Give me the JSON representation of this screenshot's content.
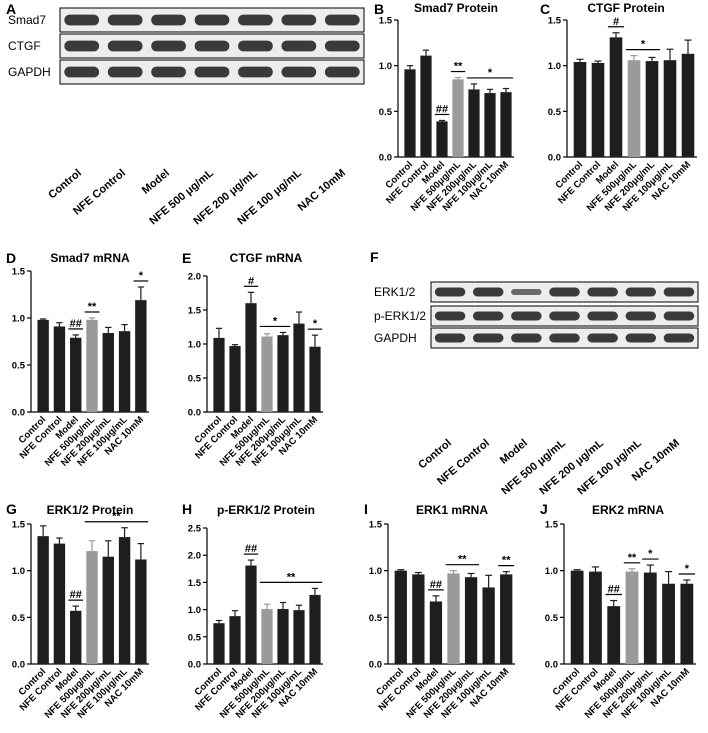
{
  "colors": {
    "dark": "#1e1e1e",
    "gray": "#9a9a9a",
    "axis": "#000000"
  },
  "blots": [
    {
      "label": "A",
      "rows": [
        "Smad7",
        "CTGF",
        "GAPDH"
      ],
      "lanes": [
        "Control",
        "NFE Control",
        "Model",
        "NFE 500 μg/mL",
        "NFE 200 μg/mL",
        "NFE 100 μg/mL",
        "NAC 10mM"
      ]
    },
    {
      "label": "F",
      "rows": [
        "ERK1/2",
        "p-ERK1/2",
        "GAPDH"
      ],
      "lanes": [
        "Control",
        "NFE Control",
        "Model",
        "NFE 500 μg/mL",
        "NFE 200 μg/mL",
        "NFE 100 μg/mL",
        "NAC 10mM"
      ]
    }
  ],
  "chart_data": [
    {
      "label": "B",
      "type": "bar",
      "title": "Smad7 Protein",
      "categories": [
        "Control",
        "NFE Control",
        "Model",
        "NFE 500μg/mL",
        "NFE 200μg/mL",
        "NFE 100μg/mL",
        "NAC 10mM"
      ],
      "values": [
        0.96,
        1.11,
        0.39,
        0.85,
        0.74,
        0.7,
        0.71
      ],
      "errors": [
        0.04,
        0.06,
        0.01,
        0.02,
        0.06,
        0.04,
        0.04
      ],
      "ylim": [
        0,
        1.5
      ],
      "yticks": [
        0.0,
        0.5,
        1.0,
        1.5
      ],
      "annotations": [
        {
          "text": "##",
          "from": 2,
          "to": 2
        },
        {
          "text": "**",
          "from": 3,
          "to": 3
        },
        {
          "text": "*",
          "from": 4,
          "to": 6
        }
      ]
    },
    {
      "label": "C",
      "type": "bar",
      "title": "CTGF Protein",
      "categories": [
        "Control",
        "NFE Control",
        "Model",
        "NFE 500μg/mL",
        "NFE 200μg/mL",
        "NFE 100μg/mL",
        "NAC 10mM"
      ],
      "values": [
        1.04,
        1.03,
        1.31,
        1.06,
        1.05,
        1.06,
        1.13
      ],
      "errors": [
        0.03,
        0.02,
        0.05,
        0.05,
        0.04,
        0.12,
        0.15
      ],
      "ylim": [
        0,
        1.5
      ],
      "yticks": [
        0.0,
        0.5,
        1.0,
        1.5
      ],
      "annotations": [
        {
          "text": "#",
          "from": 2,
          "to": 2
        },
        {
          "text": "*",
          "from": 3,
          "to": 4
        }
      ]
    },
    {
      "label": "D",
      "type": "bar",
      "title": "Smad7 mRNA",
      "categories": [
        "Control",
        "NFE Control",
        "Model",
        "NFE 500μg/mL",
        "NFE 200μg/mL",
        "NFE 100μg/mL",
        "NAC 10mM"
      ],
      "values": [
        0.98,
        0.91,
        0.79,
        0.98,
        0.84,
        0.86,
        1.19
      ],
      "errors": [
        0.01,
        0.04,
        0.03,
        0.02,
        0.06,
        0.07,
        0.14
      ],
      "ylim": [
        0,
        1.5
      ],
      "yticks": [
        0.0,
        0.5,
        1.0,
        1.5
      ],
      "annotations": [
        {
          "text": "##",
          "from": 2,
          "to": 2
        },
        {
          "text": "**",
          "from": 3,
          "to": 3
        },
        {
          "text": "*",
          "from": 6,
          "to": 6
        }
      ]
    },
    {
      "label": "E",
      "type": "bar",
      "title": "CTGF mRNA",
      "categories": [
        "Control",
        "NFE Control",
        "Model",
        "NFE 500μg/mL",
        "NFE 200μg/mL",
        "NFE 100μg/mL",
        "NAC 10mM"
      ],
      "values": [
        1.09,
        0.97,
        1.6,
        1.11,
        1.13,
        1.3,
        0.96
      ],
      "errors": [
        0.14,
        0.02,
        0.16,
        0.04,
        0.04,
        0.17,
        0.17
      ],
      "ylim": [
        0,
        2.0
      ],
      "yticks": [
        0.0,
        0.5,
        1.0,
        1.5,
        2.0
      ],
      "annotations": [
        {
          "text": "#",
          "from": 2,
          "to": 2
        },
        {
          "text": "*",
          "from": 3,
          "to": 4
        },
        {
          "text": "*",
          "from": 6,
          "to": 6
        }
      ]
    },
    {
      "label": "G",
      "type": "bar",
      "title": "ERK1/2 Protein",
      "categories": [
        "Control",
        "NFE Control",
        "Model",
        "NFE 500μg/mL",
        "NFE 200μg/mL",
        "NFE 100μg/mL",
        "NAC 10mM"
      ],
      "values": [
        1.37,
        1.29,
        0.57,
        1.21,
        1.15,
        1.36,
        1.12
      ],
      "errors": [
        0.11,
        0.06,
        0.05,
        0.11,
        0.17,
        0.1,
        0.17
      ],
      "ylim": [
        0,
        1.5
      ],
      "yticks": [
        0.0,
        0.5,
        1.0,
        1.5
      ],
      "annotations": [
        {
          "text": "##",
          "from": 2,
          "to": 2
        },
        {
          "text": "**",
          "from": 3,
          "to": 6
        }
      ]
    },
    {
      "label": "H",
      "type": "bar",
      "title": "p-ERK1/2 Protein",
      "categories": [
        "Control",
        "NFE Control",
        "Model",
        "NFE 500μg/mL",
        "NFE 200μg/mL",
        "NFE 100μg/mL",
        "NAC 10mM"
      ],
      "values": [
        0.75,
        0.88,
        1.81,
        1.01,
        1.01,
        0.99,
        1.27
      ],
      "errors": [
        0.05,
        0.1,
        0.1,
        0.09,
        0.12,
        0.09,
        0.12
      ],
      "ylim": [
        0,
        2.5
      ],
      "yticks": [
        0.0,
        0.5,
        1.0,
        1.5,
        2.0,
        2.5
      ],
      "annotations": [
        {
          "text": "##",
          "from": 2,
          "to": 2
        },
        {
          "text": "**",
          "from": 3,
          "to": 6
        }
      ]
    },
    {
      "label": "I",
      "type": "bar",
      "title": "ERK1 mRNA",
      "categories": [
        "Control",
        "NFE Control",
        "Model",
        "NFE 500μg/mL",
        "NFE 200μg/mL",
        "NFE 100μg/mL",
        "NAC 10mM"
      ],
      "values": [
        1.0,
        0.96,
        0.67,
        0.97,
        0.93,
        0.82,
        0.96
      ],
      "errors": [
        0.01,
        0.02,
        0.06,
        0.03,
        0.04,
        0.13,
        0.03
      ],
      "ylim": [
        0,
        1.5
      ],
      "yticks": [
        0.0,
        0.5,
        1.0,
        1.5
      ],
      "annotations": [
        {
          "text": "##",
          "from": 2,
          "to": 2
        },
        {
          "text": "**",
          "from": 3,
          "to": 4
        },
        {
          "text": "**",
          "from": 6,
          "to": 6
        }
      ]
    },
    {
      "label": "J",
      "type": "bar",
      "title": "ERK2 mRNA",
      "categories": [
        "Control",
        "NFE Control",
        "Model",
        "NFE 500μg/mL",
        "NFE 200μg/mL",
        "NFE 100μg/mL",
        "NAC 10mM"
      ],
      "values": [
        1.0,
        0.99,
        0.62,
        0.99,
        0.98,
        0.86,
        0.86
      ],
      "errors": [
        0.01,
        0.05,
        0.06,
        0.03,
        0.08,
        0.13,
        0.04
      ],
      "ylim": [
        0,
        1.5
      ],
      "yticks": [
        0.0,
        0.5,
        1.0,
        1.5
      ],
      "annotations": [
        {
          "text": "##",
          "from": 2,
          "to": 2
        },
        {
          "text": "**",
          "from": 3,
          "to": 3
        },
        {
          "text": "*",
          "from": 4,
          "to": 4
        },
        {
          "text": "*",
          "from": 6,
          "to": 6
        }
      ]
    }
  ]
}
